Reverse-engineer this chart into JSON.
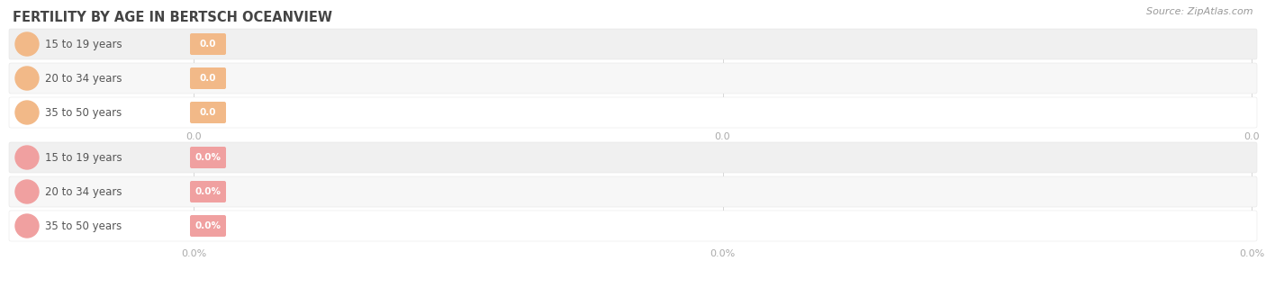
{
  "title": "FERTILITY BY AGE IN BERTSCH OCEANVIEW",
  "source": "Source: ZipAtlas.com",
  "top_section": {
    "categories": [
      "15 to 19 years",
      "20 to 34 years",
      "35 to 50 years"
    ],
    "values": [
      0.0,
      0.0,
      0.0
    ],
    "bar_color": "#f2b988",
    "x_tick_labels": [
      "0.0",
      "0.0",
      "0.0"
    ]
  },
  "bottom_section": {
    "categories": [
      "15 to 19 years",
      "20 to 34 years",
      "35 to 50 years"
    ],
    "values": [
      0.0,
      0.0,
      0.0
    ],
    "bar_color": "#f0a0a0",
    "x_tick_labels": [
      "0.0%",
      "0.0%",
      "0.0%"
    ]
  },
  "background_color": "#ffffff",
  "row_alt_colors": [
    "#efefef",
    "#f9f9f9",
    "#ffffff"
  ],
  "title_fontsize": 10.5,
  "label_fontsize": 8.5,
  "tick_fontsize": 8.0,
  "source_fontsize": 8.0
}
